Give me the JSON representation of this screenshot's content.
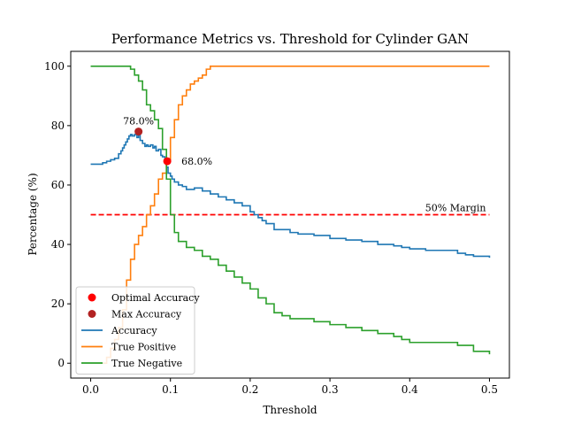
{
  "chart_data": {
    "type": "line",
    "title": "Performance Metrics vs. Threshold for Cylinder GAN",
    "xlabel": "Threshold",
    "ylabel": "Percentage (%)",
    "xlim": [
      -0.025,
      0.525
    ],
    "ylim": [
      -5,
      105
    ],
    "xticks": [
      0.0,
      0.1,
      0.2,
      0.3,
      0.4,
      0.5
    ],
    "xtick_labels": [
      "0.0",
      "0.1",
      "0.2",
      "0.3",
      "0.4",
      "0.5"
    ],
    "yticks": [
      0,
      20,
      40,
      60,
      80,
      100
    ],
    "ytick_labels": [
      "0",
      "20",
      "40",
      "60",
      "80",
      "100"
    ],
    "grid": false,
    "legend_position": "lower-left",
    "series": [
      {
        "name": "Accuracy",
        "color": "#1f77b4",
        "step": true,
        "x": [
          0.0,
          0.01,
          0.015,
          0.02,
          0.025,
          0.03,
          0.035,
          0.038,
          0.04,
          0.042,
          0.044,
          0.046,
          0.048,
          0.05,
          0.052,
          0.055,
          0.058,
          0.06,
          0.062,
          0.065,
          0.068,
          0.07,
          0.072,
          0.075,
          0.078,
          0.08,
          0.082,
          0.085,
          0.088,
          0.09,
          0.093,
          0.095,
          0.097,
          0.1,
          0.102,
          0.105,
          0.11,
          0.115,
          0.12,
          0.125,
          0.13,
          0.14,
          0.15,
          0.16,
          0.17,
          0.18,
          0.19,
          0.2,
          0.205,
          0.21,
          0.215,
          0.22,
          0.23,
          0.25,
          0.26,
          0.28,
          0.3,
          0.32,
          0.34,
          0.36,
          0.38,
          0.39,
          0.4,
          0.42,
          0.44,
          0.46,
          0.47,
          0.48,
          0.49,
          0.5
        ],
        "y": [
          67,
          67,
          67.5,
          68,
          68.5,
          69,
          70.5,
          71.5,
          72.5,
          73.5,
          74.5,
          75.5,
          76.5,
          77,
          76.5,
          77,
          76,
          77,
          75,
          74,
          73,
          73.5,
          73,
          73.5,
          72.5,
          73,
          71.5,
          72,
          70,
          69.5,
          68,
          66,
          64,
          63,
          62,
          61,
          60,
          59.5,
          58.5,
          58.5,
          59,
          58,
          57,
          56,
          55,
          54,
          53,
          51,
          50,
          49,
          48,
          47,
          45,
          44,
          43.5,
          43,
          42,
          41.5,
          41,
          40,
          39.5,
          39,
          38.5,
          38,
          38,
          37,
          36.5,
          36,
          36,
          35.5
        ]
      },
      {
        "name": "True Positive",
        "color": "#ff7f0e",
        "step": true,
        "x": [
          0.0,
          0.015,
          0.02,
          0.025,
          0.03,
          0.035,
          0.04,
          0.045,
          0.05,
          0.055,
          0.06,
          0.065,
          0.07,
          0.075,
          0.08,
          0.085,
          0.09,
          0.095,
          0.1,
          0.105,
          0.11,
          0.115,
          0.12,
          0.125,
          0.13,
          0.135,
          0.14,
          0.145,
          0.15,
          0.16,
          0.2,
          0.3,
          0.4,
          0.5
        ],
        "y": [
          0,
          0,
          2,
          5,
          8,
          12,
          18,
          28,
          35,
          40,
          43,
          46,
          50,
          53,
          57,
          62,
          64,
          68,
          76,
          82,
          87,
          90,
          92,
          94,
          95,
          96,
          97,
          99,
          100,
          100,
          100,
          100,
          100,
          100
        ]
      },
      {
        "name": "True Negative",
        "color": "#2ca02c",
        "step": true,
        "x": [
          0.0,
          0.02,
          0.04,
          0.05,
          0.055,
          0.06,
          0.065,
          0.07,
          0.075,
          0.08,
          0.085,
          0.09,
          0.095,
          0.1,
          0.105,
          0.11,
          0.12,
          0.13,
          0.14,
          0.15,
          0.16,
          0.17,
          0.18,
          0.19,
          0.2,
          0.21,
          0.22,
          0.23,
          0.24,
          0.25,
          0.26,
          0.28,
          0.3,
          0.32,
          0.34,
          0.36,
          0.38,
          0.39,
          0.4,
          0.42,
          0.44,
          0.46,
          0.48,
          0.5
        ],
        "y": [
          100,
          100,
          100,
          99,
          97,
          95,
          92,
          87,
          85,
          82,
          79,
          72,
          62,
          50,
          44,
          41,
          39,
          38,
          36,
          35,
          33,
          31,
          29,
          27,
          25,
          22,
          20,
          17,
          16,
          15,
          15,
          14,
          13,
          12,
          11,
          10,
          9,
          8,
          7,
          7,
          7,
          6,
          4,
          3
        ]
      }
    ],
    "points": [
      {
        "name": "Optimal Accuracy",
        "color": "#ff0000",
        "x": 0.096,
        "y": 68,
        "label": "68.0%"
      },
      {
        "name": "Max Accuracy",
        "color": "#b22222",
        "x": 0.06,
        "y": 78,
        "label": "78.0%"
      }
    ],
    "reference_line": {
      "label": "50% Margin",
      "y": 50,
      "x": [
        0.0,
        0.5
      ],
      "color": "#ff0000",
      "style": "dashed"
    },
    "legend": [
      "Optimal Accuracy",
      "Max Accuracy",
      "Accuracy",
      "True Positive",
      "True Negative"
    ]
  }
}
